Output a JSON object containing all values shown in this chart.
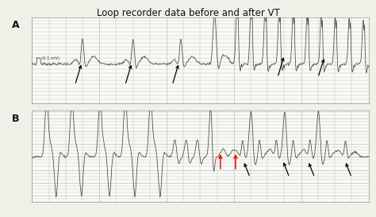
{
  "title": "Loop recorder data before and after VT",
  "title_fontsize": 8.5,
  "background_color": "#f0efe8",
  "panel_bg": "#fafaf6",
  "grid_color": "#bbbbbb",
  "trace_color": "#444444",
  "label_A": "A",
  "label_B": "B",
  "figsize": [
    4.74,
    2.73
  ],
  "dpi": 100,
  "calib_label": "(0.1 mV)"
}
